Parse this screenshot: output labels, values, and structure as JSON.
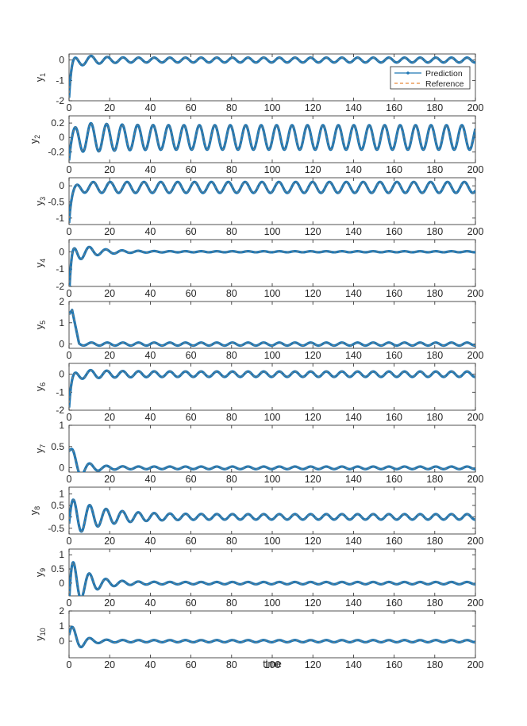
{
  "figure": {
    "xlabel": "time",
    "legend": {
      "placement": "top-right of first panel",
      "entries": [
        {
          "label": "Prediction",
          "color": "#1f77b4",
          "style": "solid line with dot marker"
        },
        {
          "label": "Reference",
          "color": "#e8893a",
          "style": "dashed line"
        }
      ]
    },
    "colors": {
      "prediction": "#1f77b4",
      "reference": "#e8893a",
      "axis": "#262626"
    }
  },
  "chart_data": [
    {
      "type": "line",
      "panel": 1,
      "ylabel_base": "y",
      "ylabel_sub": "1",
      "xlim": [
        0,
        200
      ],
      "ylim": [
        -2,
        0.3
      ],
      "xticks": [
        "0",
        "20",
        "40",
        "60",
        "80",
        "100",
        "120",
        "140",
        "160",
        "180",
        "200"
      ],
      "yticks": [
        "-2",
        "-1",
        "0"
      ],
      "signal": {
        "start": -1.5,
        "offset": 0.0,
        "trans_amp": 0.35,
        "trans_tau": 8,
        "trans_period": 8.5,
        "steady_amp": 0.12,
        "steady_period": 7.7
      },
      "series": [
        {
          "name": "Prediction"
        },
        {
          "name": "Reference"
        }
      ]
    },
    {
      "type": "line",
      "panel": 2,
      "ylabel_base": "y",
      "ylabel_sub": "2",
      "xlim": [
        0,
        200
      ],
      "ylim": [
        -0.35,
        0.3
      ],
      "xticks": [
        "0",
        "20",
        "40",
        "60",
        "80",
        "100",
        "120",
        "140",
        "160",
        "180",
        "200"
      ],
      "yticks": [
        "-0.2",
        "0",
        "0.2"
      ],
      "signal": {
        "start": -0.2,
        "offset": 0.0,
        "trans_amp": 0.12,
        "trans_tau": 10,
        "trans_period": 8.0,
        "steady_amp": 0.17,
        "steady_period": 7.6
      },
      "series": [
        {
          "name": "Prediction"
        },
        {
          "name": "Reference"
        }
      ]
    },
    {
      "type": "line",
      "panel": 3,
      "ylabel_base": "y",
      "ylabel_sub": "3",
      "xlim": [
        0,
        200
      ],
      "ylim": [
        -1.2,
        0.25
      ],
      "xticks": [
        "0",
        "20",
        "40",
        "60",
        "80",
        "100",
        "120",
        "140",
        "160",
        "180",
        "200"
      ],
      "yticks": [
        "-1",
        "-0.5",
        "0"
      ],
      "signal": {
        "start": -1.1,
        "offset": -0.05,
        "trans_amp": 0.05,
        "trans_tau": 6,
        "trans_period": 8.0,
        "steady_amp": 0.17,
        "steady_period": 8.3
      },
      "series": [
        {
          "name": "Prediction"
        },
        {
          "name": "Reference"
        }
      ]
    },
    {
      "type": "line",
      "panel": 4,
      "ylabel_base": "y",
      "ylabel_sub": "4",
      "xlim": [
        0,
        200
      ],
      "ylim": [
        -2,
        0.7
      ],
      "xticks": [
        "0",
        "20",
        "40",
        "60",
        "80",
        "100",
        "120",
        "140",
        "160",
        "180",
        "200"
      ],
      "yticks": [
        "-2",
        "-1",
        "0"
      ],
      "signal": {
        "start": -1.9,
        "offset": 0.0,
        "trans_amp": 0.7,
        "trans_tau": 10,
        "trans_period": 8.0,
        "steady_amp": 0.03,
        "steady_period": 7.7
      },
      "series": [
        {
          "name": "Prediction"
        },
        {
          "name": "Reference"
        }
      ]
    },
    {
      "type": "line",
      "panel": 5,
      "ylabel_base": "y",
      "ylabel_sub": "5",
      "xlim": [
        0,
        200
      ],
      "ylim": [
        -0.2,
        2
      ],
      "xticks": [
        "0",
        "20",
        "40",
        "60",
        "80",
        "100",
        "120",
        "140",
        "160",
        "180",
        "200"
      ],
      "yticks": [
        "0",
        "1",
        "2"
      ],
      "signal": {
        "start": 1.4,
        "offset": 0.0,
        "trans_amp": 0.05,
        "trans_tau": 5,
        "trans_period": 8.0,
        "steady_amp": 0.07,
        "steady_period": 7.7,
        "bump": {
          "peak": 1.6,
          "t_peak": 1.5,
          "t_end": 5
        }
      },
      "series": [
        {
          "name": "Prediction"
        },
        {
          "name": "Reference"
        }
      ]
    },
    {
      "type": "line",
      "panel": 6,
      "ylabel_base": "y",
      "ylabel_sub": "6",
      "xlim": [
        0,
        200
      ],
      "ylim": [
        -2,
        0.6
      ],
      "xticks": [
        "0",
        "20",
        "40",
        "60",
        "80",
        "100",
        "120",
        "140",
        "160",
        "180",
        "200"
      ],
      "yticks": [
        "-2",
        "-1",
        "0"
      ],
      "signal": {
        "start": -1.6,
        "offset": 0.0,
        "trans_amp": 0.25,
        "trans_tau": 12,
        "trans_period": 8.0,
        "steady_amp": 0.15,
        "steady_period": 7.7
      },
      "series": [
        {
          "name": "Prediction"
        },
        {
          "name": "Reference"
        }
      ]
    },
    {
      "type": "line",
      "panel": 7,
      "ylabel_base": "y",
      "ylabel_sub": "7",
      "xlim": [
        0,
        200
      ],
      "ylim": [
        -0.1,
        1
      ],
      "xticks": [
        "0",
        "20",
        "40",
        "60",
        "80",
        "100",
        "120",
        "140",
        "160",
        "180",
        "200"
      ],
      "yticks": [
        "0",
        "0.5",
        "1"
      ],
      "signal": {
        "start": 0.85,
        "offset": 0.0,
        "trans_amp": 0.45,
        "trans_tau": 6,
        "trans_period": 8.0,
        "steady_amp": 0.03,
        "steady_period": 7.7
      },
      "series": [
        {
          "name": "Prediction"
        },
        {
          "name": "Reference"
        }
      ]
    },
    {
      "type": "line",
      "panel": 8,
      "ylabel_base": "y",
      "ylabel_sub": "8",
      "xlim": [
        0,
        200
      ],
      "ylim": [
        -0.75,
        1.3
      ],
      "xticks": [
        "0",
        "20",
        "40",
        "60",
        "80",
        "100",
        "120",
        "140",
        "160",
        "180",
        "200"
      ],
      "yticks": [
        "-0.5",
        "0",
        "0.5",
        "1"
      ],
      "signal": {
        "start": 0.6,
        "offset": 0.0,
        "trans_amp": 0.9,
        "trans_tau": 14,
        "trans_period": 8.0,
        "steady_amp": 0.12,
        "steady_period": 7.7
      },
      "series": [
        {
          "name": "Prediction"
        },
        {
          "name": "Reference"
        }
      ]
    },
    {
      "type": "line",
      "panel": 9,
      "ylabel_base": "y",
      "ylabel_sub": "9",
      "xlim": [
        0,
        200
      ],
      "ylim": [
        -0.45,
        1.2
      ],
      "xticks": [
        "0",
        "20",
        "40",
        "60",
        "80",
        "100",
        "120",
        "140",
        "160",
        "180",
        "200"
      ],
      "yticks": [
        "0",
        "0.5",
        "1"
      ],
      "signal": {
        "start": 0.4,
        "offset": 0.0,
        "trans_amp": 1.1,
        "trans_tau": 8,
        "trans_period": 8.0,
        "steady_amp": 0.04,
        "steady_period": 7.7
      },
      "series": [
        {
          "name": "Prediction"
        },
        {
          "name": "Reference"
        }
      ]
    },
    {
      "type": "line",
      "panel": 10,
      "ylabel_base": "y",
      "ylabel_sub": "10",
      "xlim": [
        0,
        200
      ],
      "ylim": [
        -1.1,
        2
      ],
      "xticks": [
        "0",
        "20",
        "40",
        "60",
        "80",
        "100",
        "120",
        "140",
        "160",
        "180",
        "200"
      ],
      "yticks": [
        "0",
        "1",
        "2"
      ],
      "signal": {
        "start": 1.6,
        "offset": 0.0,
        "trans_amp": 1.2,
        "trans_tau": 5,
        "trans_period": 8.0,
        "steady_amp": 0.07,
        "steady_period": 7.7
      },
      "series": [
        {
          "name": "Prediction"
        },
        {
          "name": "Reference"
        }
      ]
    }
  ]
}
